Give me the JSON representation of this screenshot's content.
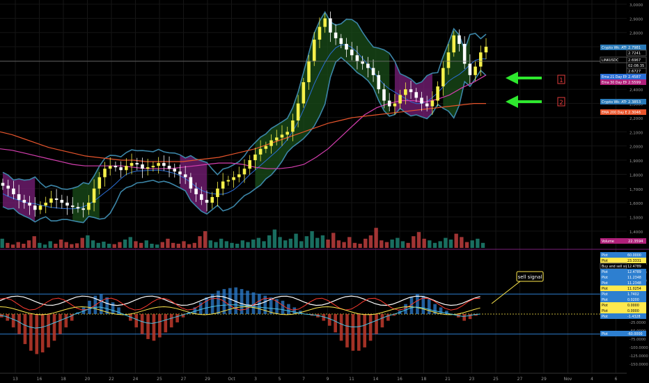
{
  "chart_data": [
    {
      "type": "candlestick",
      "symbol_label": "LINKUSDC",
      "ylim": [
        1.36,
        3.0
      ],
      "price_axis": [
        "3,0000",
        "2,9000",
        "2,8000",
        "2,7000",
        "2,6000",
        "2,5000",
        "2,4000",
        "2,3000",
        "2,2000",
        "2,1000",
        "2,0000",
        "1,9000",
        "1,8000",
        "1,7000",
        "1,6000",
        "1,5000",
        "1,4000"
      ],
      "price_ticks": [
        3.0,
        2.9,
        2.8,
        2.7,
        2.6,
        2.5,
        2.4,
        2.3,
        2.2,
        2.1,
        2.0,
        1.9,
        1.8,
        1.7,
        1.6,
        1.5,
        1.4
      ],
      "close_path": [
        1.72,
        1.7,
        1.66,
        1.62,
        1.6,
        1.58,
        1.55,
        1.58,
        1.6,
        1.63,
        1.62,
        1.6,
        1.58,
        1.57,
        1.56,
        1.55,
        1.6,
        1.7,
        1.78,
        1.84,
        1.86,
        1.85,
        1.83,
        1.86,
        1.88,
        1.87,
        1.84,
        1.85,
        1.86,
        1.88,
        1.86,
        1.84,
        1.82,
        1.8,
        1.78,
        1.7,
        1.66,
        1.62,
        1.6,
        1.64,
        1.7,
        1.75,
        1.76,
        1.78,
        1.8,
        1.84,
        1.9,
        1.94,
        1.98,
        2.0,
        2.04,
        2.06,
        2.08,
        2.1,
        2.18,
        2.3,
        2.45,
        2.6,
        2.75,
        2.84,
        2.9,
        2.8,
        2.76,
        2.72,
        2.68,
        2.64,
        2.6,
        2.58,
        2.55,
        2.5,
        2.4,
        2.32,
        2.28,
        2.3,
        2.36,
        2.4,
        2.38,
        2.34,
        2.3,
        2.28,
        2.32,
        2.42,
        2.55,
        2.66,
        2.78,
        2.72,
        2.58,
        2.5,
        2.56,
        2.66,
        2.7
      ],
      "indicators": [
        {
          "name": "Ema 30 Day EMA",
          "values": [
            1.98,
            1.97,
            1.95,
            1.93,
            1.91,
            1.89,
            1.87,
            1.86,
            1.86,
            1.86,
            1.86,
            1.85,
            1.84,
            1.84,
            1.84,
            1.85,
            1.86,
            1.87,
            1.88,
            1.88,
            1.87,
            1.85,
            1.84,
            1.84,
            1.85,
            1.87,
            1.92,
            1.98,
            2.06,
            2.14,
            2.22,
            2.27,
            2.3,
            2.32,
            2.32,
            2.31,
            2.33,
            2.36,
            2.41,
            2.45,
            2.5
          ],
          "color": "#d63fb0"
        },
        {
          "name": "EMA 200 Day EMA",
          "values": [
            2.1,
            2.08,
            2.05,
            2.02,
            1.99,
            1.97,
            1.95,
            1.93,
            1.92,
            1.91,
            1.9,
            1.9,
            1.89,
            1.89,
            1.89,
            1.89,
            1.9,
            1.91,
            1.92,
            1.94,
            1.96,
            1.98,
            2.01,
            2.04,
            2.07,
            2.1,
            2.13,
            2.16,
            2.18,
            2.2,
            2.21,
            2.22,
            2.23,
            2.24,
            2.25,
            2.26,
            2.27,
            2.28,
            2.29,
            2.3,
            2.3
          ],
          "color": "#e8552c"
        }
      ],
      "volume_bars": [
        22,
        12,
        8,
        14,
        10,
        18,
        28,
        12,
        8,
        16,
        10,
        20,
        14,
        9,
        11,
        24,
        30,
        18,
        12,
        15,
        10,
        9,
        14,
        20,
        26,
        16,
        12,
        18,
        10,
        8,
        14,
        22,
        12,
        10,
        16,
        9,
        12,
        28,
        40,
        18,
        14,
        22,
        16,
        12,
        10,
        18,
        14,
        20,
        24,
        16,
        30,
        44,
        26,
        18,
        22,
        34,
        16,
        28,
        40,
        24,
        30,
        20,
        36,
        18,
        14,
        26,
        12,
        10,
        22,
        30,
        48,
        18,
        14,
        20,
        24,
        16,
        12,
        28,
        38,
        22,
        18,
        12,
        16,
        24,
        20,
        34,
        26,
        14,
        18,
        22,
        12
      ],
      "tags": [
        {
          "label": "Crypto Wk: ATH Plot",
          "value": "2.7981"
        },
        {
          "label": "",
          "value": "2.7241"
        },
        {
          "label": "LINKUSDC",
          "value": "2.6967"
        },
        {
          "label": "",
          "value": "02:08:35"
        },
        {
          "label": "",
          "value": "2.6727"
        },
        {
          "label": "Ema 21 Day EMA",
          "value": "2.4587"
        },
        {
          "label": "Ema 30 Day EMA",
          "value": "2.5599"
        },
        {
          "label": "Crypto Wk: ATH Plot",
          "value": "2.3853"
        },
        {
          "label": "EMA 200 Day EMA",
          "value": "2.3046"
        },
        {
          "label": "Volume",
          "value": "22.3594"
        }
      ]
    },
    {
      "type": "oscillator",
      "ylim": [
        -165,
        165
      ],
      "osc_axis": [
        "150.0000",
        "125.0000",
        "100.0000",
        "75.0000",
        "50.0000",
        "25.0000",
        "0.0000",
        "-25.0000",
        "-50.0000",
        "-75.0000",
        "-100.0000",
        "-125.0000",
        "-150.0000"
      ],
      "osc_ticks": [
        150,
        125,
        100,
        75,
        50,
        25,
        0,
        -25,
        -50,
        -75,
        -100,
        -125,
        -150
      ],
      "histogram": [
        -10,
        -20,
        -40,
        -60,
        -90,
        -110,
        -120,
        -115,
        -100,
        -80,
        -60,
        -40,
        -20,
        5,
        20,
        40,
        55,
        60,
        50,
        35,
        20,
        0,
        -20,
        -40,
        -60,
        -75,
        -80,
        -70,
        -55,
        -40,
        -25,
        -10,
        5,
        20,
        35,
        50,
        60,
        70,
        75,
        78,
        80,
        75,
        70,
        65,
        60,
        55,
        50,
        45,
        40,
        30,
        20,
        10,
        0,
        -5,
        -10,
        -20,
        -35,
        -55,
        -80,
        -100,
        -110,
        -110,
        -100,
        -80,
        -60,
        -40,
        -20,
        -5,
        10,
        30,
        50,
        60,
        55,
        45,
        30,
        20,
        10,
        0,
        -10,
        -20,
        -15,
        -5,
        0
      ],
      "tags": [
        {
          "label": "Plot",
          "value": "60.0000"
        },
        {
          "label": "Plot",
          "value": "23.3331"
        },
        {
          "label": "Buy and sell signals",
          "value": "12.4789"
        },
        {
          "label": "Plot",
          "value": "12.4789"
        },
        {
          "label": "Plot",
          "value": "11.2348"
        },
        {
          "label": "Plot",
          "value": "11.2348"
        },
        {
          "label": "Plot",
          "value": "11.0254"
        },
        {
          "label": "Plot",
          "value": "1.7402"
        },
        {
          "label": "Plot",
          "value": "0.0200"
        },
        {
          "label": "Plot",
          "value": "0.0000"
        },
        {
          "label": "Plot",
          "value": "0.0000"
        },
        {
          "label": "Plot",
          "value": "-1.4328"
        },
        {
          "label": "Plot",
          "value": "-60.0000"
        }
      ]
    }
  ],
  "x_axis": {
    "labels": [
      "13",
      "16",
      "18",
      "20",
      "22",
      "24",
      "25",
      "27",
      "29",
      "Oct",
      "3",
      "5",
      "7",
      "9",
      "11",
      "14",
      "16",
      "18",
      "21",
      "23",
      "25",
      "27",
      "29",
      "Nov",
      "4",
      "6"
    ]
  },
  "annotations": {
    "marker_1": "1",
    "marker_2": "2",
    "callout": "sell signal"
  },
  "colors": {
    "bull_candle": "#f5f04a",
    "bear_candle": "#ffffff",
    "band_line": "#3c86a8",
    "ema21": "#2b6fd6",
    "ema_purple": "#d63fb0",
    "ema200": "#e8552c",
    "fill_green": "#1a4d1a",
    "fill_purple": "#7a1f7a",
    "vol_up": "#1c7a6a",
    "vol_down": "#b33a3a",
    "arrow": "#2ee82e",
    "marker_box": "#e23b3b",
    "osc_blue": "#2d7fd0",
    "osc_red": "#c0392b",
    "signal_yellow": "#ffe94d",
    "signal_red": "#ff3b30"
  }
}
